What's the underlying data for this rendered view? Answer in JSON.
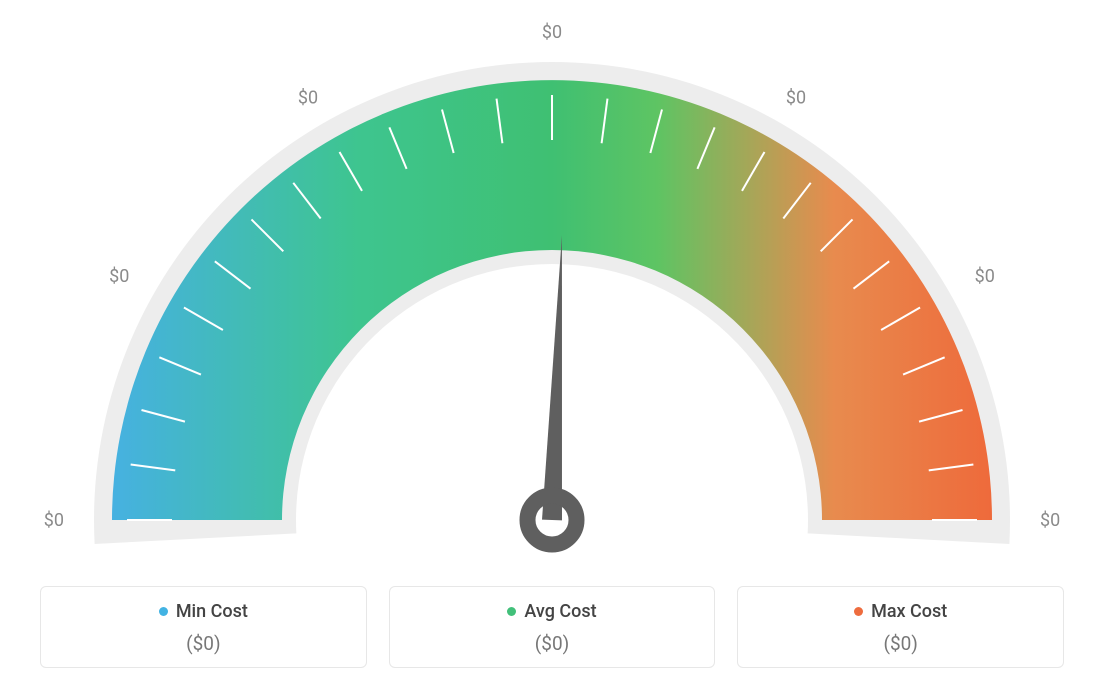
{
  "gauge": {
    "type": "gauge",
    "background_color": "#ffffff",
    "tick_labels": [
      "$0",
      "$0",
      "$0",
      "$0",
      "$0",
      "$0",
      "$0"
    ],
    "tick_label_color": "#8a8a8a",
    "tick_label_fontsize": 18,
    "arc": {
      "outer_radius": 440,
      "inner_radius": 270,
      "track_color": "#ededed",
      "track_outer_extra": 18,
      "track_inner_extra": 14,
      "gradient_colors": [
        "#46b1e1",
        "#3ec58f",
        "#3fc072",
        "#5ec463",
        "#e88b4e",
        "#ee6a3b"
      ],
      "gradient_stops": [
        0,
        0.28,
        0.5,
        0.62,
        0.82,
        1.0
      ]
    },
    "minor_ticks": {
      "count": 25,
      "color": "#ffffff",
      "width": 2,
      "inner_r": 380,
      "outer_r": 425
    },
    "needle": {
      "angle_deg": 88,
      "color": "#5f5f5f",
      "length": 285,
      "base_half_width": 10,
      "hub_outer_r": 32,
      "hub_inner_r": 17,
      "hub_stroke": "#5f5f5f",
      "hub_stroke_width": 16
    }
  },
  "legend": {
    "cards": [
      {
        "label": "Min Cost",
        "value": "($0)",
        "color": "#42b3e3"
      },
      {
        "label": "Avg Cost",
        "value": "($0)",
        "color": "#42c07a"
      },
      {
        "label": "Max Cost",
        "value": "($0)",
        "color": "#ee6c3e"
      }
    ],
    "border_color": "#e7e7e7",
    "label_fontsize": 18,
    "value_fontsize": 19,
    "value_color": "#777777"
  }
}
